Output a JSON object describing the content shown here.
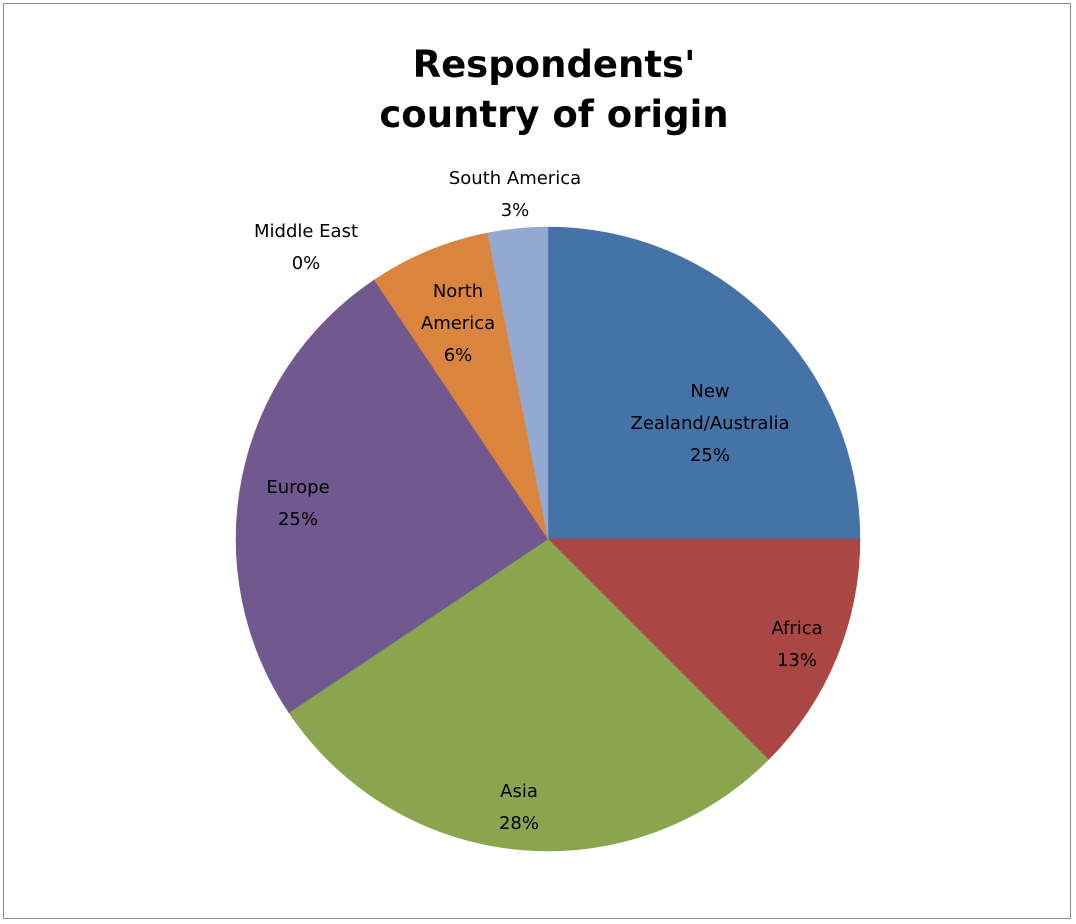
{
  "chart_data": {
    "type": "pie",
    "title_lines": [
      "Respondents'",
      "country of origin"
    ],
    "start_angle_deg": 0,
    "direction": "clockwise",
    "slices": [
      {
        "label_lines": [
          "New",
          "Zealand/Australia"
        ],
        "percent_label": "25%",
        "value": 25,
        "color": "#4572A7"
      },
      {
        "label_lines": [
          "Africa"
        ],
        "percent_label": "13%",
        "value": 12.5,
        "color": "#AA4643"
      },
      {
        "label_lines": [
          "Asia"
        ],
        "percent_label": "28%",
        "value": 28.1,
        "color": "#89A54E"
      },
      {
        "label_lines": [
          "Europe"
        ],
        "percent_label": "25%",
        "value": 25,
        "color": "#71588F"
      },
      {
        "label_lines": [
          "Middle East"
        ],
        "percent_label": "0%",
        "value": 0,
        "color": "#4198AF"
      },
      {
        "label_lines": [
          "North",
          "America"
        ],
        "percent_label": "6%",
        "value": 6.3,
        "color": "#DB843D"
      },
      {
        "label_lines": [
          "South America"
        ],
        "percent_label": "3%",
        "value": 3.1,
        "color": "#93A9CF"
      }
    ]
  }
}
